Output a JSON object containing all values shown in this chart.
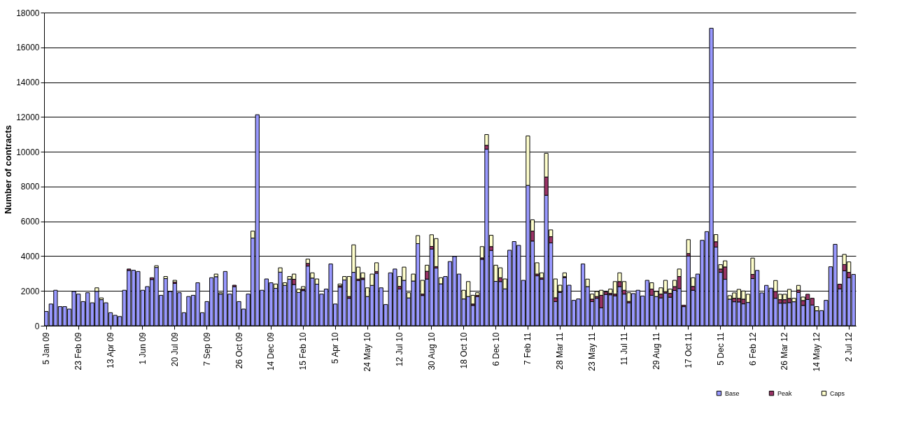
{
  "chart_data": {
    "type": "bar",
    "stacked": true,
    "ylabel": "Number of contracts",
    "categories": [
      "5 Jan 09",
      null,
      null,
      null,
      null,
      null,
      null,
      "23 Feb 09",
      null,
      null,
      null,
      null,
      null,
      null,
      "13 Apr 09",
      null,
      null,
      null,
      null,
      null,
      null,
      "1 Jun 09",
      null,
      null,
      null,
      null,
      null,
      null,
      "20 Jul 09",
      null,
      null,
      null,
      null,
      null,
      null,
      "7 Sep 09",
      null,
      null,
      null,
      null,
      null,
      null,
      "26 Oct 09",
      null,
      null,
      null,
      null,
      null,
      null,
      "14 Dec 09",
      null,
      null,
      null,
      null,
      null,
      null,
      "15 Feb 10",
      null,
      null,
      null,
      null,
      null,
      null,
      "5 Apr 10",
      null,
      null,
      null,
      null,
      null,
      null,
      "24 May 10",
      null,
      null,
      null,
      null,
      null,
      null,
      "12 Jul 10",
      null,
      null,
      null,
      null,
      null,
      null,
      "30 Aug 10",
      null,
      null,
      null,
      null,
      null,
      null,
      "18 Oct 10",
      null,
      null,
      null,
      null,
      null,
      null,
      "6 Dec 10",
      null,
      null,
      null,
      null,
      null,
      null,
      "7 Feb 11",
      null,
      null,
      null,
      null,
      null,
      null,
      "28 Mar 11",
      null,
      null,
      null,
      null,
      null,
      null,
      "23 May 11",
      null,
      null,
      null,
      null,
      null,
      null,
      "11 Jul 11",
      null,
      null,
      null,
      null,
      null,
      null,
      "29 Aug 11",
      null,
      null,
      null,
      null,
      null,
      null,
      "17 Oct 11",
      null,
      null,
      null,
      null,
      null,
      null,
      "5 Dec 11",
      null,
      null,
      null,
      null,
      null,
      null,
      "6 Feb 12",
      null,
      null,
      null,
      null,
      null,
      null,
      "26 Mar 12",
      null,
      null,
      null,
      null,
      null,
      null,
      "14 May 12",
      null,
      null,
      null,
      null,
      null,
      null,
      "2 Jul 12",
      null
    ],
    "series": [
      {
        "name": "Base",
        "color": "#9999ff",
        "values": [
          820,
          1250,
          2040,
          1100,
          1100,
          960,
          1970,
          1820,
          1390,
          1900,
          1320,
          1980,
          1500,
          1320,
          750,
          600,
          530,
          2040,
          3180,
          3190,
          3120,
          2040,
          2250,
          2660,
          3350,
          1750,
          2710,
          1970,
          2430,
          1900,
          750,
          1680,
          1750,
          2470,
          750,
          1390,
          2760,
          2820,
          1820,
          3120,
          1820,
          2250,
          1390,
          960,
          1820,
          5040,
          12130,
          2040,
          2690,
          2470,
          2150,
          3080,
          2320,
          2680,
          2370,
          1910,
          2020,
          3430,
          2740,
          2390,
          1820,
          2110,
          3550,
          1250,
          2220,
          2630,
          1580,
          3070,
          2600,
          2660,
          1680,
          2320,
          3020,
          2180,
          1220,
          3040,
          3260,
          2110,
          2610,
          1600,
          2570,
          4720,
          1740,
          2680,
          4410,
          3320,
          2410,
          2830,
          3690,
          3980,
          2970,
          1540,
          1680,
          1170,
          1670,
          3820,
          10150,
          4330,
          2550,
          2540,
          2120,
          4340,
          4840,
          4620,
          2610,
          8070,
          4870,
          2870,
          2670,
          7500,
          4760,
          1390,
          1920,
          2770,
          2330,
          1460,
          1540,
          3550,
          2250,
          1390,
          1580,
          1030,
          1800,
          1780,
          1720,
          2250,
          1820,
          1320,
          1850,
          2040,
          1710,
          2610,
          1750,
          1680,
          1600,
          1880,
          1640,
          2030,
          2140,
          1100,
          4010,
          2040,
          2970,
          4910,
          5410,
          17100,
          4520,
          3070,
          2670,
          1530,
          1380,
          1370,
          1260,
          1340,
          2710,
          3180,
          1890,
          2320,
          2160,
          1580,
          1300,
          1300,
          1330,
          1380,
          1920,
          1170,
          1510,
          1190,
          860,
          870,
          1460,
          3390,
          4680,
          2120,
          3160,
          2760,
          2950
        ]
      },
      {
        "name": "Peak",
        "color": "#993366",
        "values": [
          null,
          null,
          null,
          null,
          null,
          null,
          null,
          null,
          null,
          null,
          null,
          null,
          null,
          null,
          null,
          null,
          null,
          null,
          80,
          null,
          null,
          null,
          null,
          100,
          null,
          null,
          null,
          null,
          80,
          null,
          null,
          null,
          null,
          null,
          null,
          null,
          null,
          null,
          null,
          null,
          null,
          80,
          null,
          null,
          null,
          null,
          null,
          null,
          null,
          null,
          null,
          null,
          null,
          null,
          300,
          null,
          80,
          150,
          null,
          null,
          null,
          null,
          null,
          null,
          80,
          null,
          100,
          null,
          80,
          80,
          null,
          null,
          100,
          null,
          null,
          null,
          null,
          150,
          null,
          null,
          null,
          null,
          80,
          450,
          150,
          80,
          null,
          null,
          null,
          null,
          null,
          null,
          null,
          80,
          80,
          80,
          220,
          220,
          null,
          220,
          null,
          null,
          null,
          null,
          null,
          null,
          570,
          100,
          80,
          1050,
          360,
          220,
          50,
          50,
          null,
          null,
          null,
          null,
          null,
          140,
          100,
          720,
          140,
          80,
          100,
          290,
          220,
          80,
          null,
          null,
          null,
          null,
          360,
          null,
          220,
          80,
          220,
          220,
          690,
          80,
          140,
          220,
          null,
          null,
          null,
          null,
          310,
          190,
          710,
          null,
          200,
          200,
          270,
          null,
          240,
          null,
          null,
          null,
          null,
          390,
          200,
          200,
          240,
          null,
          130,
          280,
          300,
          390,
          null,
          null,
          null,
          null,
          null,
          270,
          360,
          310,
          null
        ]
      },
      {
        "name": "Caps",
        "color": "#ffffcc",
        "values": [
          null,
          null,
          null,
          null,
          null,
          null,
          null,
          null,
          null,
          null,
          null,
          200,
          100,
          null,
          null,
          null,
          null,
          null,
          null,
          null,
          null,
          null,
          null,
          null,
          100,
          null,
          120,
          null,
          100,
          null,
          null,
          null,
          null,
          null,
          null,
          null,
          null,
          150,
          80,
          null,
          null,
          null,
          null,
          null,
          null,
          400,
          null,
          null,
          null,
          null,
          250,
          250,
          150,
          150,
          300,
          200,
          150,
          250,
          300,
          300,
          null,
          null,
          null,
          null,
          100,
          200,
          1150,
          1580,
          690,
          300,
          500,
          650,
          500,
          null,
          null,
          null,
          null,
          570,
          760,
          300,
          400,
          460,
          790,
          350,
          670,
          1610,
          350,
          null,
          null,
          null,
          null,
          500,
          860,
          500,
          150,
          650,
          620,
          650,
          930,
          570,
          570,
          null,
          null,
          null,
          null,
          2840,
          650,
          650,
          290,
          1360,
          390,
          1080,
          360,
          220,
          null,
          null,
          null,
          null,
          430,
          290,
          290,
          290,
          null,
          250,
          720,
          500,
          500,
          500,
          null,
          null,
          null,
          null,
          360,
          290,
          360,
          650,
          250,
          360,
          430,
          null,
          800,
          500,
          null,
          null,
          null,
          null,
          410,
          250,
          350,
          200,
          310,
          520,
          470,
          470,
          940,
          null,
          null,
          null,
          null,
          630,
          310,
          310,
          520,
          200,
          270,
          200,
          null,
          null,
          240,
          null,
          null,
          null,
          null,
          null,
          580,
          600,
          null
        ]
      }
    ],
    "ylim": [
      0,
      18000
    ],
    "yticks": [
      0,
      2000,
      4000,
      6000,
      8000,
      10000,
      12000,
      14000,
      16000,
      18000
    ],
    "grid": "y",
    "legend": "bottom right"
  }
}
